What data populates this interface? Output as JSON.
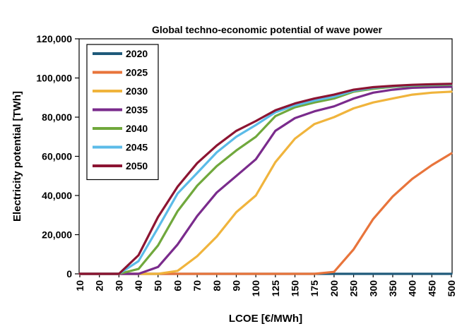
{
  "chart_data": {
    "type": "line",
    "title": "Global techno-economic potential of wave power",
    "xlabel": "LCOE [€/MWh]",
    "ylabel": "Electricity potential [TWh]",
    "categories": [
      "10",
      "20",
      "30",
      "40",
      "50",
      "60",
      "70",
      "80",
      "90",
      "100",
      "125",
      "150",
      "175",
      "200",
      "250",
      "300",
      "350",
      "400",
      "450",
      "500"
    ],
    "ylim": [
      0,
      120000
    ],
    "yticks": [
      "0",
      "20,000",
      "40,000",
      "60,000",
      "80,000",
      "100,000",
      "120,000"
    ],
    "ytick_values": [
      0,
      20000,
      40000,
      60000,
      80000,
      100000,
      120000
    ],
    "grid": false,
    "legend_position": "top-left",
    "series": [
      {
        "name": "2020",
        "color": "#1f5a7a",
        "values": [
          0,
          0,
          0,
          0,
          0,
          0,
          0,
          0,
          0,
          0,
          0,
          0,
          0,
          0,
          0,
          0,
          0,
          0,
          0,
          0
        ]
      },
      {
        "name": "2025",
        "color": "#e8743b",
        "values": [
          0,
          0,
          0,
          0,
          0,
          0,
          0,
          0,
          0,
          0,
          0,
          0,
          0,
          1000,
          12500,
          28000,
          39500,
          48500,
          55500,
          61500
        ]
      },
      {
        "name": "2030",
        "color": "#f0b43c",
        "values": [
          0,
          0,
          0,
          0,
          0,
          1500,
          9000,
          19000,
          31500,
          40000,
          57000,
          69000,
          76500,
          80000,
          84500,
          87500,
          89500,
          91500,
          92500,
          93000
        ]
      },
      {
        "name": "2035",
        "color": "#7a2b8c",
        "values": [
          0,
          0,
          0,
          0,
          3500,
          15000,
          29500,
          41500,
          50000,
          58500,
          73000,
          79500,
          83000,
          85500,
          89500,
          92500,
          94000,
          95000,
          95300,
          95500
        ]
      },
      {
        "name": "2040",
        "color": "#70a83c",
        "values": [
          0,
          0,
          0,
          2500,
          14500,
          32000,
          45000,
          55000,
          63000,
          70000,
          80500,
          85000,
          87500,
          89500,
          93000,
          94500,
          95500,
          96000,
          96300,
          96500
        ]
      },
      {
        "name": "2045",
        "color": "#5bbbe8",
        "values": [
          0,
          0,
          0,
          6500,
          23500,
          41000,
          51500,
          62000,
          70000,
          76000,
          82500,
          86000,
          88500,
          90500,
          93500,
          95000,
          95800,
          96300,
          96600,
          96800
        ]
      },
      {
        "name": "2050",
        "color": "#8c1432",
        "values": [
          0,
          0,
          0,
          9500,
          29000,
          44500,
          56500,
          65500,
          73000,
          78000,
          83500,
          87000,
          89500,
          91500,
          94000,
          95300,
          96000,
          96500,
          96800,
          97000
        ]
      }
    ]
  }
}
